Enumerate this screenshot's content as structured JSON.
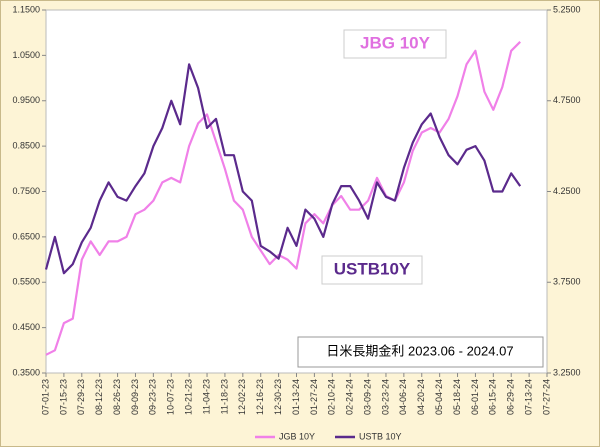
{
  "chart_data": {
    "type": "line",
    "annotations": [
      "JBG 10Y",
      "USTB10Y",
      "日米長期金利 2023.06 - 2024.07"
    ],
    "x": [
      "07-01-23",
      "07-08-23",
      "07-15-23",
      "07-22-23",
      "07-29-23",
      "08-05-23",
      "08-12-23",
      "08-19-23",
      "08-26-23",
      "09-02-23",
      "09-09-23",
      "09-16-23",
      "09-23-23",
      "09-30-23",
      "10-07-23",
      "10-14-23",
      "10-21-23",
      "10-28-23",
      "11-04-23",
      "11-11-23",
      "11-18-23",
      "11-25-23",
      "12-02-23",
      "12-09-23",
      "12-16-23",
      "12-23-23",
      "12-30-23",
      "01-06-24",
      "01-13-24",
      "01-20-24",
      "01-27-24",
      "02-03-24",
      "02-10-24",
      "02-17-24",
      "02-24-24",
      "03-02-24",
      "03-09-24",
      "03-16-24",
      "03-23-24",
      "03-30-24",
      "04-06-24",
      "04-13-24",
      "04-20-24",
      "04-27-24",
      "05-04-24",
      "05-11-24",
      "05-18-24",
      "05-25-24",
      "06-01-24",
      "06-08-24",
      "06-15-24",
      "06-22-24",
      "06-29-24",
      "07-06-24"
    ],
    "series": [
      {
        "name": "JGB 10Y",
        "color": "#f080e8",
        "axis": "y",
        "values": [
          0.39,
          0.4,
          0.46,
          0.47,
          0.6,
          0.64,
          0.61,
          0.64,
          0.64,
          0.65,
          0.7,
          0.71,
          0.73,
          0.77,
          0.78,
          0.77,
          0.85,
          0.9,
          0.92,
          0.86,
          0.8,
          0.73,
          0.71,
          0.65,
          0.62,
          0.59,
          0.61,
          0.6,
          0.58,
          0.68,
          0.7,
          0.68,
          0.72,
          0.74,
          0.71,
          0.71,
          0.73,
          0.78,
          0.74,
          0.73,
          0.77,
          0.84,
          0.88,
          0.89,
          0.88,
          0.91,
          0.96,
          1.03,
          1.06,
          0.97,
          0.93,
          0.98,
          1.06,
          1.08
        ]
      },
      {
        "name": "USTB 10Y",
        "color": "#5b2a8c",
        "axis": "y2",
        "values": [
          3.82,
          4.0,
          3.8,
          3.85,
          3.97,
          4.05,
          4.2,
          4.3,
          4.22,
          4.2,
          4.28,
          4.35,
          4.5,
          4.6,
          4.75,
          4.62,
          4.95,
          4.82,
          4.6,
          4.65,
          4.45,
          4.45,
          4.25,
          4.2,
          3.95,
          3.92,
          3.88,
          4.05,
          3.95,
          4.15,
          4.1,
          4.0,
          4.18,
          4.28,
          4.28,
          4.2,
          4.1,
          4.3,
          4.22,
          4.2,
          4.38,
          4.52,
          4.62,
          4.68,
          4.55,
          4.45,
          4.4,
          4.48,
          4.5,
          4.42,
          4.25,
          4.25,
          4.35,
          4.28
        ]
      }
    ],
    "xlim": [
      "07-01-23",
      "07-27-24"
    ],
    "xticks": [
      "07-01-23",
      "07-15-23",
      "07-29-23",
      "08-12-23",
      "08-26-23",
      "09-09-23",
      "09-23-23",
      "10-07-23",
      "10-21-23",
      "11-04-23",
      "11-18-23",
      "12-02-23",
      "12-16-23",
      "12-30-23",
      "01-13-24",
      "01-27-24",
      "02-10-24",
      "02-24-24",
      "03-09-24",
      "03-23-24",
      "04-06-24",
      "04-20-24",
      "05-04-24",
      "05-18-24",
      "06-01-24",
      "06-15-24",
      "06-29-24",
      "07-13-24",
      "07-27-24"
    ],
    "ylim": [
      0.35,
      1.15
    ],
    "yticks": [
      {
        "value": 0.35,
        "label": "0.3500"
      },
      {
        "value": 0.45,
        "label": "0.4500"
      },
      {
        "value": 0.55,
        "label": "0.5500"
      },
      {
        "value": 0.65,
        "label": "0.6500"
      },
      {
        "value": 0.75,
        "label": "0.7500"
      },
      {
        "value": 0.85,
        "label": "0.8500"
      },
      {
        "value": 0.95,
        "label": "0.9500"
      },
      {
        "value": 1.05,
        "label": "1.0500"
      },
      {
        "value": 1.15,
        "label": "1.1500"
      }
    ],
    "y2lim": [
      3.25,
      5.25
    ],
    "y2ticks": [
      {
        "value": 3.25,
        "label": "3.2500"
      },
      {
        "value": 3.75,
        "label": "3.7500"
      },
      {
        "value": 4.25,
        "label": "4.2500"
      },
      {
        "value": 4.75,
        "label": "4.7500"
      },
      {
        "value": 5.25,
        "label": "5.2500"
      }
    ],
    "legend": "bottom"
  }
}
